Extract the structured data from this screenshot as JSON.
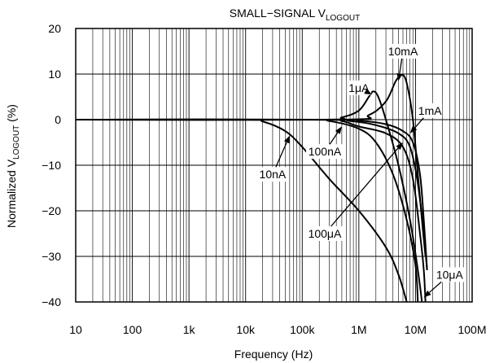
{
  "chart_data": {
    "type": "line",
    "title": "SMALL−SIGNAL V",
    "title_sub": "LOGOUT",
    "xlabel": "Frequency (Hz)",
    "ylabel": "Normalized V",
    "ylabel_sub": "LOGOUT",
    "ylabel_suffix": " (%)",
    "x_scale": "log",
    "xlim": [
      10,
      100000000
    ],
    "ylim": [
      -40,
      20
    ],
    "grid": true,
    "x_ticks": [
      {
        "value": 10,
        "label": "10"
      },
      {
        "value": 100,
        "label": "100"
      },
      {
        "value": 1000,
        "label": "1k"
      },
      {
        "value": 10000,
        "label": "10k"
      },
      {
        "value": 100000,
        "label": "100k"
      },
      {
        "value": 1000000,
        "label": "1M"
      },
      {
        "value": 10000000,
        "label": "10M"
      },
      {
        "value": 100000000,
        "label": "100M"
      }
    ],
    "y_ticks": [
      {
        "value": 20,
        "label": "20"
      },
      {
        "value": 10,
        "label": "10"
      },
      {
        "value": 0,
        "label": "0"
      },
      {
        "value": -10,
        "label": "−10"
      },
      {
        "value": -20,
        "label": "−20"
      },
      {
        "value": -30,
        "label": "−30"
      },
      {
        "value": -40,
        "label": "−40"
      }
    ],
    "series": [
      {
        "name": "10nA",
        "points": [
          [
            10,
            0
          ],
          [
            10000,
            0
          ],
          [
            20000,
            -0.4
          ],
          [
            50000,
            -2.5
          ],
          [
            100000,
            -6
          ],
          [
            300000,
            -13
          ],
          [
            1000000,
            -20
          ],
          [
            3000000,
            -28
          ],
          [
            5000000,
            -34
          ],
          [
            7000000,
            -40
          ]
        ]
      },
      {
        "name": "100nA",
        "points": [
          [
            10,
            0
          ],
          [
            100000,
            0
          ],
          [
            300000,
            -0.3
          ],
          [
            1000000,
            -2
          ],
          [
            2000000,
            -5
          ],
          [
            4000000,
            -12
          ],
          [
            7000000,
            -22
          ],
          [
            10000000,
            -32
          ],
          [
            11000000,
            -40
          ]
        ]
      },
      {
        "name": "1μA",
        "points": [
          [
            10,
            0
          ],
          [
            200000,
            0
          ],
          [
            500000,
            0.5
          ],
          [
            1000000,
            2
          ],
          [
            1500000,
            5
          ],
          [
            1800000,
            6.2
          ],
          [
            2200000,
            5
          ],
          [
            3000000,
            0
          ],
          [
            5000000,
            -10
          ],
          [
            8000000,
            -22
          ],
          [
            11000000,
            -33
          ],
          [
            13000000,
            -40
          ]
        ]
      },
      {
        "name": "10μA",
        "points": [
          [
            10,
            0
          ],
          [
            200000,
            0
          ],
          [
            500000,
            -0.3
          ],
          [
            1000000,
            -1.5
          ],
          [
            3000000,
            -3
          ],
          [
            6000000,
            -6
          ],
          [
            9000000,
            -13
          ],
          [
            12000000,
            -25
          ],
          [
            14000000,
            -33
          ],
          [
            15000000,
            -40
          ]
        ]
      },
      {
        "name": "100μA",
        "points": [
          [
            10,
            0
          ],
          [
            200000,
            0
          ],
          [
            700000,
            -0.3
          ],
          [
            2000000,
            -1.2
          ],
          [
            5000000,
            -3
          ],
          [
            8000000,
            -6
          ],
          [
            11000000,
            -14
          ],
          [
            14000000,
            -25
          ],
          [
            16000000,
            -33
          ]
        ]
      },
      {
        "name": "1mA",
        "points": [
          [
            10,
            0
          ],
          [
            300000,
            0
          ],
          [
            1000000,
            -0.2
          ],
          [
            3000000,
            -1
          ],
          [
            6000000,
            -2.5
          ],
          [
            9000000,
            -5
          ],
          [
            12000000,
            -12
          ],
          [
            14000000,
            -22
          ],
          [
            16000000,
            -33
          ]
        ]
      },
      {
        "name": "10mA",
        "points": [
          [
            10,
            0
          ],
          [
            500000,
            0
          ],
          [
            1500000,
            1
          ],
          [
            3000000,
            4
          ],
          [
            4500000,
            8.5
          ],
          [
            5800000,
            9.8
          ],
          [
            7000000,
            8
          ],
          [
            9000000,
            0
          ],
          [
            11000000,
            -12
          ],
          [
            13000000,
            -22
          ],
          [
            15000000,
            -30
          ]
        ]
      }
    ],
    "annotations": [
      {
        "text": "10mA",
        "tx": 6000000,
        "ty": 15,
        "ax": 5000000,
        "ay": 8.5
      },
      {
        "text": "1μA",
        "tx": 1000000,
        "ty": 7,
        "ax": 1700000,
        "ay": 5.5
      },
      {
        "text": "1mA",
        "tx": 18000000,
        "ty": 2,
        "ax": 8000000,
        "ay": -3
      },
      {
        "text": "100nA",
        "tx": 250000,
        "ty": -7,
        "ax": 500000,
        "ay": -1.5
      },
      {
        "text": "10nA",
        "tx": 30000,
        "ty": -12,
        "ax": 60000,
        "ay": -3.5
      },
      {
        "text": "100μA",
        "tx": 250000,
        "ty": -25,
        "ax": 6000000,
        "ay": -5
      },
      {
        "text": "10μA",
        "tx": 40000000,
        "ty": -34,
        "ax": 14000000,
        "ay": -39
      }
    ]
  }
}
